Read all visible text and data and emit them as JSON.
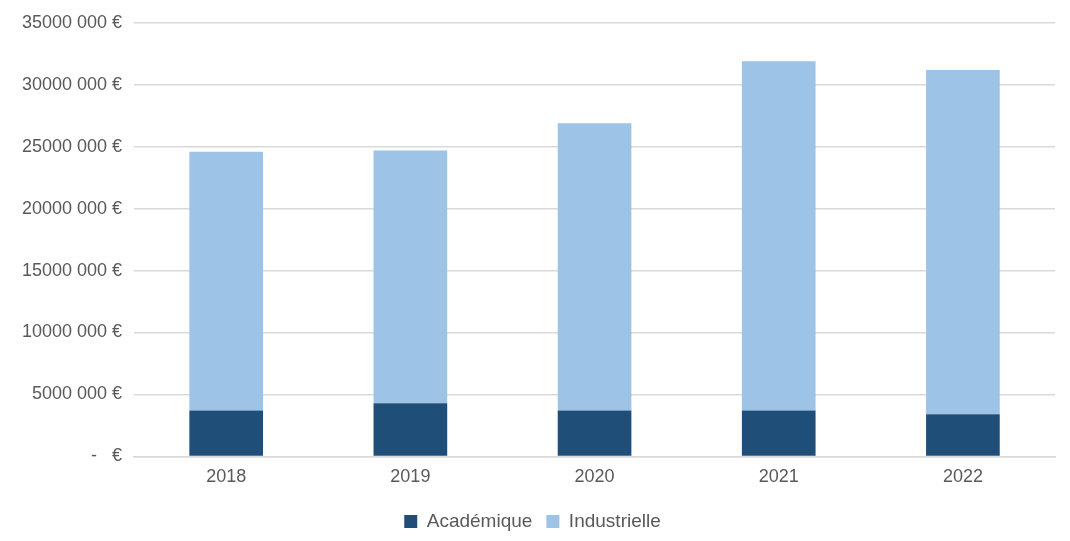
{
  "chart_data": {
    "type": "bar",
    "stacked": true,
    "categories": [
      "2018",
      "2019",
      "2020",
      "2021",
      "2022"
    ],
    "series": [
      {
        "name": "Académique",
        "color": "#1f4e79",
        "values": [
          3700000,
          4300000,
          3700000,
          3700000,
          3400000
        ]
      },
      {
        "name": "Industrielle",
        "color": "#9dc3e6",
        "values": [
          20900000,
          20400000,
          23200000,
          28200000,
          27800000
        ]
      }
    ],
    "ylim": [
      0,
      35000000
    ],
    "yticks": [
      {
        "value": 0,
        "label": "-   €"
      },
      {
        "value": 5000000,
        "label": "5000 000 €"
      },
      {
        "value": 10000000,
        "label": "10000 000 €"
      },
      {
        "value": 15000000,
        "label": "15000 000 €"
      },
      {
        "value": 20000000,
        "label": "20000 000 €"
      },
      {
        "value": 25000000,
        "label": "25000 000 €"
      },
      {
        "value": 30000000,
        "label": "30000 000 €"
      },
      {
        "value": 35000000,
        "label": "35000 000 €"
      }
    ],
    "grid": "y",
    "legend": "bottom"
  }
}
